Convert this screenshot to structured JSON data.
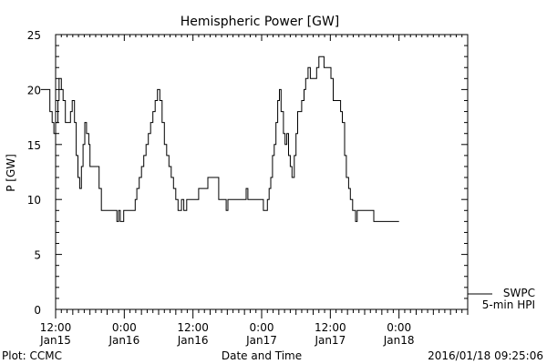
{
  "footer": {
    "left": "Plot: CCMC",
    "center": "Date and Time",
    "right": "2016/01/18 09:25:06"
  },
  "chart_data": {
    "type": "line",
    "title": "Hemispheric Power [GW]",
    "xlabel": "Date and Time",
    "ylabel": "P [GW]",
    "ylim": [
      0,
      25
    ],
    "yticks": [
      0,
      5,
      10,
      15,
      20,
      25
    ],
    "xlim": [
      5.0,
      77.0
    ],
    "x_units": "hours since 2016/01/15 07:00",
    "xticks": [
      {
        "x": 5,
        "time": "12:00",
        "date": "Jan15"
      },
      {
        "x": 17,
        "time": "0:00",
        "date": "Jan16"
      },
      {
        "x": 29,
        "time": "12:00",
        "date": "Jan16"
      },
      {
        "x": 41,
        "time": "0:00",
        "date": "Jan17"
      },
      {
        "x": 53,
        "time": "12:00",
        "date": "Jan17"
      },
      {
        "x": 65,
        "time": "0:00",
        "date": "Jan18"
      }
    ],
    "legend": {
      "position": "bottom-right",
      "lines": [
        "SWPC",
        "5-min HPI"
      ]
    },
    "series": [
      {
        "name": "SWPC 5-min HPI",
        "step": true,
        "points": [
          [
            2.4,
            20
          ],
          [
            3.7,
            20
          ],
          [
            4.0,
            18
          ],
          [
            4.4,
            17
          ],
          [
            4.7,
            16
          ],
          [
            5.0,
            17
          ],
          [
            5.4,
            19
          ],
          [
            5.6,
            21
          ],
          [
            6.0,
            20
          ],
          [
            6.3,
            19
          ],
          [
            6.7,
            17
          ],
          [
            7.3,
            17
          ],
          [
            7.6,
            18
          ],
          [
            7.9,
            19
          ],
          [
            8.3,
            17
          ],
          [
            8.6,
            14
          ],
          [
            8.9,
            12
          ],
          [
            9.2,
            11
          ],
          [
            9.5,
            13
          ],
          [
            9.8,
            15
          ],
          [
            10.1,
            17
          ],
          [
            10.4,
            16
          ],
          [
            10.8,
            15
          ],
          [
            11.0,
            13
          ],
          [
            12.3,
            13
          ],
          [
            12.6,
            11
          ],
          [
            13.0,
            9
          ],
          [
            15.5,
            9
          ],
          [
            15.7,
            8
          ],
          [
            16.0,
            9
          ],
          [
            16.3,
            8
          ],
          [
            16.9,
            9
          ],
          [
            18.7,
            9
          ],
          [
            18.9,
            10
          ],
          [
            19.2,
            11
          ],
          [
            19.6,
            12
          ],
          [
            20.0,
            13
          ],
          [
            20.4,
            14
          ],
          [
            20.8,
            15
          ],
          [
            21.2,
            16
          ],
          [
            21.6,
            17
          ],
          [
            22.0,
            18
          ],
          [
            22.4,
            19
          ],
          [
            22.8,
            20
          ],
          [
            23.2,
            19
          ],
          [
            23.6,
            17
          ],
          [
            24.0,
            15
          ],
          [
            24.4,
            14
          ],
          [
            24.8,
            13
          ],
          [
            25.2,
            12
          ],
          [
            25.6,
            11
          ],
          [
            26.0,
            10
          ],
          [
            26.4,
            9
          ],
          [
            27.0,
            10
          ],
          [
            27.4,
            9
          ],
          [
            27.9,
            10
          ],
          [
            29.6,
            10
          ],
          [
            30.0,
            11
          ],
          [
            31.3,
            11
          ],
          [
            31.6,
            12
          ],
          [
            33.2,
            12
          ],
          [
            33.5,
            10
          ],
          [
            34.5,
            10
          ],
          [
            34.8,
            9
          ],
          [
            35.1,
            10
          ],
          [
            38.0,
            10
          ],
          [
            38.3,
            11
          ],
          [
            38.6,
            10
          ],
          [
            41.0,
            10
          ],
          [
            41.3,
            9
          ],
          [
            41.7,
            9
          ],
          [
            42.0,
            10
          ],
          [
            42.3,
            11
          ],
          [
            42.6,
            12
          ],
          [
            42.9,
            14
          ],
          [
            43.2,
            15
          ],
          [
            43.5,
            17
          ],
          [
            43.8,
            19
          ],
          [
            44.1,
            20
          ],
          [
            44.4,
            18
          ],
          [
            44.8,
            16
          ],
          [
            45.1,
            15
          ],
          [
            45.4,
            16
          ],
          [
            45.7,
            14
          ],
          [
            46.0,
            13
          ],
          [
            46.3,
            12
          ],
          [
            46.7,
            14
          ],
          [
            47.0,
            16
          ],
          [
            47.3,
            18
          ],
          [
            47.6,
            18
          ],
          [
            48.0,
            19
          ],
          [
            48.4,
            20
          ],
          [
            48.7,
            21
          ],
          [
            49.1,
            22
          ],
          [
            49.5,
            21
          ],
          [
            50.2,
            21
          ],
          [
            50.6,
            22
          ],
          [
            51.0,
            23
          ],
          [
            51.9,
            22
          ],
          [
            52.7,
            22
          ],
          [
            53.1,
            21
          ],
          [
            53.5,
            19
          ],
          [
            54.5,
            19
          ],
          [
            54.8,
            18
          ],
          [
            55.1,
            17
          ],
          [
            55.5,
            14
          ],
          [
            55.8,
            12
          ],
          [
            56.2,
            11
          ],
          [
            56.5,
            10
          ],
          [
            56.9,
            9
          ],
          [
            57.4,
            8
          ],
          [
            57.7,
            9
          ],
          [
            60.3,
            9
          ],
          [
            60.6,
            8
          ],
          [
            65.0,
            8
          ]
        ]
      }
    ]
  }
}
